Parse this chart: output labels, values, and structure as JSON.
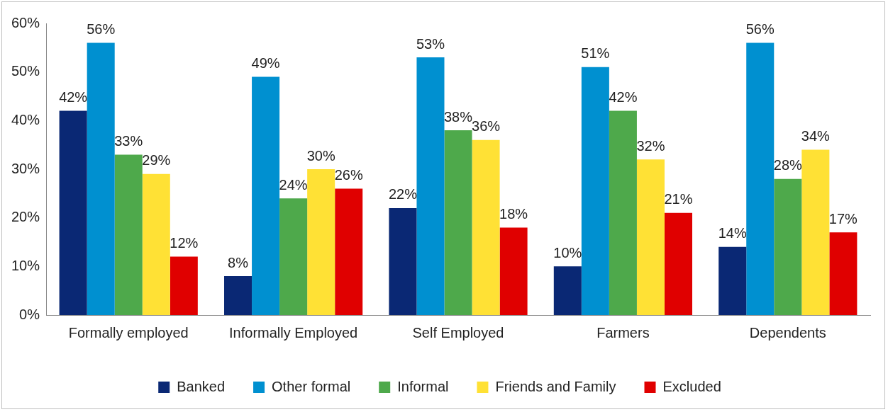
{
  "chart_data": {
    "type": "bar",
    "categories": [
      "Formally employed",
      "Informally Employed",
      "Self Employed",
      "Farmers",
      "Dependents"
    ],
    "series": [
      {
        "name": "Banked",
        "color": "#0a2874",
        "values": [
          42,
          8,
          22,
          10,
          14
        ],
        "value_labels": [
          "42%",
          "8%",
          "22%",
          "10%",
          "14%"
        ]
      },
      {
        "name": "Other formal",
        "color": "#0090d0",
        "values": [
          56,
          49,
          53,
          51,
          56
        ],
        "value_labels": [
          "56%",
          "49%",
          "53%",
          "51%",
          "56%"
        ]
      },
      {
        "name": "Informal",
        "color": "#4ea94b",
        "values": [
          33,
          24,
          38,
          42,
          28
        ],
        "value_labels": [
          "33%",
          "24%",
          "38%",
          "42%",
          "28%"
        ]
      },
      {
        "name": "Friends and Family",
        "color": "#ffe135",
        "values": [
          29,
          30,
          36,
          32,
          34
        ],
        "value_labels": [
          "29%",
          "30%",
          "36%",
          "32%",
          "34%"
        ]
      },
      {
        "name": "Excluded",
        "color": "#e00000",
        "values": [
          12,
          26,
          18,
          21,
          17
        ],
        "value_labels": [
          "12%",
          "26%",
          "18%",
          "21%",
          "17%"
        ]
      }
    ],
    "ylim": [
      0,
      60
    ],
    "yticks": [
      {
        "value": 0,
        "label": "0%"
      },
      {
        "value": 10,
        "label": "10%"
      },
      {
        "value": 20,
        "label": "20%"
      },
      {
        "value": 30,
        "label": "30%"
      },
      {
        "value": 40,
        "label": "40%"
      },
      {
        "value": 50,
        "label": "50%"
      },
      {
        "value": 60,
        "label": "60%"
      }
    ],
    "grid": false,
    "legend": "bottom"
  }
}
